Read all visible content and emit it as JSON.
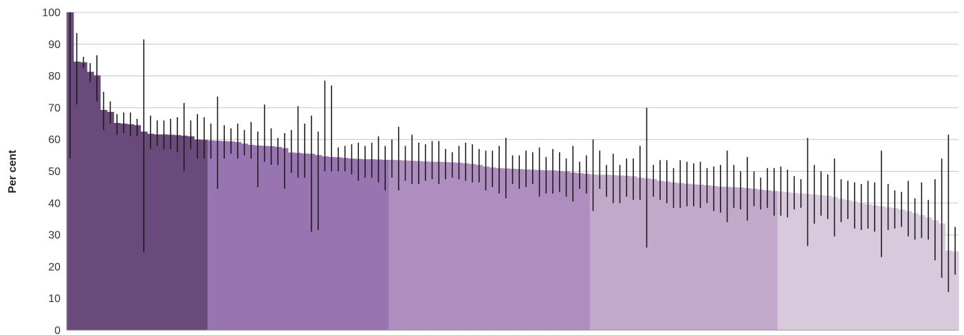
{
  "chart_data": {
    "type": "bar",
    "title": "",
    "xlabel": "",
    "ylabel": "Per cent",
    "ylim": [
      0,
      100
    ],
    "yticks": [
      0,
      10,
      20,
      30,
      40,
      50,
      60,
      70,
      80,
      90,
      100
    ],
    "grid": true,
    "legend": "none",
    "error_bars": true,
    "group_colors": [
      "#6a4a7b",
      "#9874b0",
      "#af8dbf",
      "#c2a8ca",
      "#d9c9dd"
    ],
    "bar_separator_color": "#ffffff",
    "error_bar_color": "#1a1a1a",
    "groups": [
      {
        "values": [
          100,
          84.5,
          84.3,
          81.3,
          80.2,
          69.3,
          68.7,
          65.2,
          65.0,
          64.8,
          64.5,
          62.5,
          61.8,
          61.6,
          61.6,
          61.5,
          61.4,
          61.2,
          61.0,
          60.0,
          59.9
        ],
        "lower": [
          54,
          71,
          82.5,
          78,
          72,
          63,
          65,
          61.5,
          62,
          61,
          61,
          24.5,
          57,
          58,
          57,
          57,
          56,
          50,
          57,
          54,
          54
        ],
        "upper": [
          100,
          93.5,
          86,
          84,
          86.5,
          75,
          72,
          68,
          68.5,
          68.5,
          66.5,
          91.5,
          67.5,
          66,
          66,
          66.5,
          67,
          71.5,
          66,
          68,
          67
        ]
      },
      {
        "values": [
          59.7,
          59.6,
          59.5,
          59.4,
          59.2,
          58.7,
          58.3,
          58.1,
          58.0,
          57.9,
          57.7,
          57.3,
          55.9,
          55.8,
          55.6,
          55.5,
          55.1,
          54.7,
          54.5,
          54.4,
          54.2,
          54.0,
          53.9,
          53.8,
          53.8,
          53.7,
          53.6
        ],
        "lower": [
          54,
          44.5,
          54,
          55.5,
          54,
          55,
          54,
          45,
          53,
          52,
          52,
          44.5,
          49.5,
          48,
          48,
          31,
          31.5,
          50,
          50,
          50,
          50,
          49,
          47,
          48,
          48,
          46.5,
          44
        ],
        "upper": [
          65,
          73.5,
          64.5,
          63.5,
          65,
          63,
          65.5,
          62.5,
          71,
          63.5,
          60.5,
          62,
          63,
          70.5,
          65,
          67.5,
          62.5,
          78.5,
          77,
          57.5,
          58,
          58.5,
          59,
          58,
          59,
          61,
          58
        ]
      },
      {
        "values": [
          53.6,
          53.5,
          53.4,
          53.3,
          53.2,
          53.1,
          53.0,
          53.0,
          52.9,
          52.8,
          52.7,
          52.5,
          52.3,
          52.0,
          51.5,
          51.2,
          51.0,
          50.9,
          50.8,
          50.7,
          50.6,
          50.5,
          50.4,
          50.3,
          50.3,
          50.1,
          49.9,
          49.6,
          49.4,
          49.2
        ],
        "lower": [
          48,
          44,
          47,
          46,
          46,
          47,
          47.5,
          46,
          47.5,
          48,
          47.5,
          47,
          46.5,
          46.5,
          44,
          45,
          43,
          41.5,
          46,
          44.5,
          45,
          46,
          42,
          43,
          43,
          43.5,
          42,
          40.5,
          44.5,
          43
        ],
        "upper": [
          60,
          64,
          58,
          61.5,
          59,
          58.5,
          59.5,
          59.5,
          57,
          56,
          58,
          59,
          58.5,
          57,
          56.5,
          56.5,
          58,
          60.5,
          55,
          55,
          56.5,
          56,
          57.5,
          54.5,
          57,
          56,
          54,
          58,
          53,
          55
        ]
      },
      {
        "values": [
          49.0,
          48.9,
          48.9,
          48.8,
          48.7,
          48.6,
          48.4,
          48.0,
          47.8,
          47.5,
          47.0,
          46.8,
          46.5,
          46.3,
          46.1,
          45.9,
          45.8,
          45.6,
          45.4,
          45.2,
          45.1,
          45.0,
          44.9,
          44.7,
          44.5,
          44.2,
          44.0,
          43.8
        ],
        "lower": [
          37.5,
          44.5,
          42,
          40,
          40,
          42,
          41,
          41,
          26,
          42,
          41,
          40,
          38.5,
          38.5,
          39,
          39,
          38.5,
          40,
          37.5,
          37,
          34,
          38.5,
          38,
          34.5,
          39,
          38,
          38.5,
          36
        ],
        "upper": [
          60,
          56.5,
          52,
          55.5,
          52,
          54,
          54,
          58,
          70,
          52,
          53.5,
          53.5,
          51,
          53.5,
          53,
          52.5,
          53,
          51,
          51.5,
          52,
          56.5,
          52,
          50,
          54.5,
          50,
          48,
          51,
          51
        ]
      },
      {
        "values": [
          43.6,
          43.4,
          43.2,
          43.0,
          42.9,
          42.7,
          42.5,
          42.3,
          41.9,
          41.3,
          40.9,
          40.5,
          40.0,
          39.6,
          39.3,
          39.0,
          38.7,
          38.4,
          38.0,
          37.5,
          36.8,
          36.2,
          35.5,
          34.6,
          33.6,
          25.0,
          24.8
        ],
        "lower": [
          36,
          35.5,
          38,
          38.5,
          26.5,
          33.5,
          36,
          35,
          29.5,
          34,
          35,
          32,
          31.5,
          32,
          31,
          23,
          31.5,
          32,
          32.5,
          29.5,
          28.5,
          29,
          28.5,
          22,
          16.5,
          12,
          17.5
        ],
        "upper": [
          51.5,
          50.5,
          48.5,
          47.5,
          60.5,
          52,
          50,
          49,
          54,
          47.5,
          47,
          46.5,
          46,
          47,
          46.5,
          56.5,
          46,
          44,
          43.5,
          47,
          41.5,
          46.5,
          41,
          47.5,
          54,
          61.5,
          32.5
        ]
      }
    ]
  }
}
